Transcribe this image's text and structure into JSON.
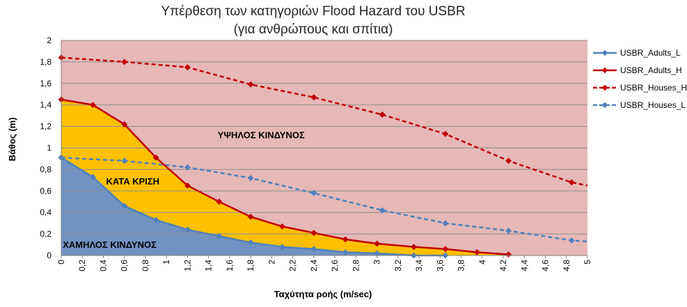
{
  "chart_data": {
    "type": "line",
    "title_line1": "Υπέρθεση των κατηγοριών Flood Hazard του USBR",
    "title_line2": "(για ανθρώπους και σπίτια)",
    "xlabel": "Ταχύτητα ροής  (m/sec)",
    "ylabel": "Βάθος (m)",
    "xlim": [
      0,
      5
    ],
    "ylim": [
      0,
      2
    ],
    "x_ticks": [
      "0",
      "0,2",
      "0,4",
      "0,6",
      "0,8",
      "1",
      "1,2",
      "1,4",
      "1,6",
      "1,8",
      "2",
      "2,2",
      "2,4",
      "2,6",
      "2,8",
      "3",
      "3,2",
      "3,4",
      "3,6",
      "3,8",
      "4",
      "4,2",
      "4,4",
      "4,6",
      "4,8",
      "5"
    ],
    "y_ticks": [
      "0",
      "0,2",
      "0,4",
      "0,6",
      "0,8",
      "1",
      "1,2",
      "1,4",
      "1,6",
      "1,8",
      "2"
    ],
    "grid": true,
    "legend_position": "right",
    "region_labels": {
      "high": "ΥΨΗΛΟΣ ΚΙΝΔΥΝΟΣ",
      "judgement": "ΚΑΤΑ ΚΡΙΣΗ",
      "low": "ΧΑΜΗΛΟΣ ΚΙΝΔΥΝΟΣ"
    },
    "colors": {
      "high_region": "#e6b8b7",
      "judgement_region": "#ffc000",
      "low_region": "#7093c2",
      "adults_l": "#4f81bd",
      "adults_h": "#c00000",
      "houses_h": "#c00000",
      "houses_l": "#4f81bd"
    },
    "series": [
      {
        "name": "USBR_Adults_L",
        "style": "solid",
        "x": [
          0,
          0.3,
          0.6,
          0.9,
          1.2,
          1.5,
          1.8,
          2.1,
          2.4,
          2.7,
          3.0,
          3.35,
          3.65
        ],
        "y": [
          0.91,
          0.73,
          0.46,
          0.33,
          0.24,
          0.18,
          0.12,
          0.08,
          0.06,
          0.03,
          0.02,
          0.0,
          0.0
        ]
      },
      {
        "name": "USBR_Adults_H",
        "style": "solid",
        "x": [
          0,
          0.3,
          0.6,
          0.9,
          1.2,
          1.5,
          1.8,
          2.1,
          2.4,
          2.7,
          3.0,
          3.35,
          3.65,
          3.95,
          4.25
        ],
        "y": [
          1.45,
          1.4,
          1.22,
          0.91,
          0.65,
          0.5,
          0.36,
          0.27,
          0.21,
          0.15,
          0.11,
          0.08,
          0.06,
          0.03,
          0.01
        ]
      },
      {
        "name": "USBR_Houses_H",
        "style": "dashed",
        "x": [
          0,
          0.6,
          1.2,
          1.8,
          2.4,
          3.05,
          3.65,
          4.25,
          4.85,
          5.0
        ],
        "y": [
          1.84,
          1.8,
          1.75,
          1.59,
          1.47,
          1.31,
          1.13,
          0.88,
          0.68,
          0.65
        ]
      },
      {
        "name": "USBR_Houses_L",
        "style": "dashed",
        "x": [
          0,
          0.6,
          1.2,
          1.8,
          2.4,
          3.05,
          3.65,
          4.25,
          4.85,
          5.0
        ],
        "y": [
          0.91,
          0.88,
          0.82,
          0.72,
          0.58,
          0.42,
          0.3,
          0.23,
          0.14,
          0.13
        ]
      }
    ]
  }
}
